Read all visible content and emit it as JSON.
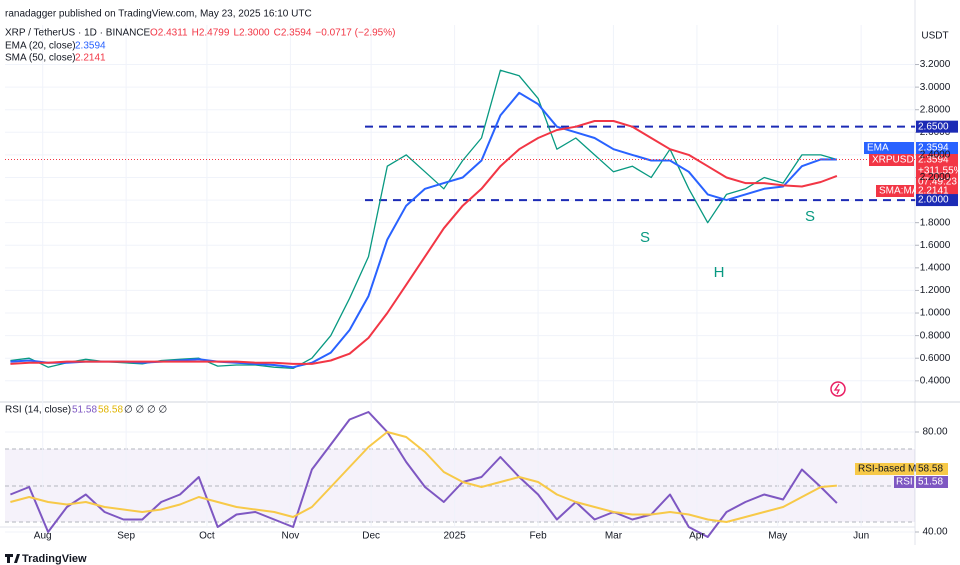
{
  "chart_data": [
    {
      "type": "line",
      "publisher": "ranadagger published on TradingView.com, May 23, 2025 16:10 UTC",
      "title": "XRP / TetherUS · 1D · BINANCE",
      "ohlc": [
        "O2.4311",
        "H2.4799",
        "L2.3000",
        "C2.3594",
        "−0.0717 (−2.95%)"
      ],
      "currency": "USDT",
      "x": [
        0,
        7,
        14,
        21,
        28,
        35,
        42,
        49,
        56,
        63,
        70,
        77,
        84,
        91,
        98,
        105,
        112,
        119,
        126,
        133,
        140,
        147,
        154,
        161,
        168,
        175,
        182,
        189,
        196,
        203,
        210,
        217,
        224,
        231,
        238,
        245,
        252,
        259,
        266,
        273,
        280,
        287,
        294,
        301,
        307
      ],
      "xlim": [
        -2,
        336
      ],
      "xticks": [
        {
          "value": 12,
          "label": "Aug"
        },
        {
          "value": 43,
          "label": "Sep"
        },
        {
          "value": 73,
          "label": "Oct"
        },
        {
          "value": 104,
          "label": "Nov"
        },
        {
          "value": 134,
          "label": "Dec"
        },
        {
          "value": 165,
          "label": "2025"
        },
        {
          "value": 196,
          "label": "Feb"
        },
        {
          "value": 224,
          "label": "Mar"
        },
        {
          "value": 255,
          "label": "Apr"
        },
        {
          "value": 285,
          "label": "May"
        },
        {
          "value": 316,
          "label": "Jun"
        }
      ],
      "ylim": [
        0.23,
        3.55
      ],
      "yticks": [
        {
          "value": 0.4,
          "label": "0.4000"
        },
        {
          "value": 0.6,
          "label": "0.6000"
        },
        {
          "value": 0.8,
          "label": "0.8000"
        },
        {
          "value": 1.0,
          "label": "1.0000"
        },
        {
          "value": 1.2,
          "label": "1.2000"
        },
        {
          "value": 1.4,
          "label": "1.4000"
        },
        {
          "value": 1.6,
          "label": "1.6000"
        },
        {
          "value": 1.8,
          "label": "1.8000"
        },
        {
          "value": 2.0,
          "label": "2.0000"
        },
        {
          "value": 2.2,
          "label": "2.2000"
        },
        {
          "value": 2.4,
          "label": "2.4000"
        },
        {
          "value": 2.6,
          "label": "2.6000"
        },
        {
          "value": 2.8,
          "label": "2.8000"
        },
        {
          "value": 3.0,
          "label": "3.0000"
        },
        {
          "value": 3.2,
          "label": "3.2000"
        }
      ],
      "levels": [
        {
          "value": 2.65,
          "label": "2.6500"
        },
        {
          "value": 2.0,
          "label": "2.0000"
        }
      ],
      "level_color": "#1c2bb5",
      "annotations": [
        "S",
        "H",
        "S"
      ],
      "price_badge": {
        "name": "XRPUSDT",
        "price": "2.3594",
        "change": "+311.55%",
        "countdown": "07:49:23"
      },
      "series": [
        {
          "name": "XRPUSDT",
          "color": "#089981",
          "values": [
            0.58,
            0.6,
            0.52,
            0.56,
            0.59,
            0.57,
            0.56,
            0.55,
            0.58,
            0.59,
            0.6,
            0.53,
            0.54,
            0.54,
            0.52,
            0.51,
            0.6,
            0.8,
            1.13,
            1.5,
            2.3,
            2.4,
            2.25,
            2.1,
            2.35,
            2.55,
            3.15,
            3.1,
            2.9,
            2.45,
            2.55,
            2.4,
            2.25,
            2.3,
            2.2,
            2.45,
            2.1,
            1.8,
            2.05,
            2.1,
            2.2,
            2.15,
            2.4,
            2.4,
            2.3594
          ]
        },
        {
          "name": "EMA (20, close)",
          "badge": "EMA",
          "legend_value": "2.3594",
          "color": "#2962ff",
          "values": [
            0.57,
            0.58,
            0.56,
            0.56,
            0.57,
            0.57,
            0.57,
            0.56,
            0.57,
            0.58,
            0.59,
            0.57,
            0.56,
            0.55,
            0.54,
            0.52,
            0.56,
            0.65,
            0.85,
            1.15,
            1.65,
            1.95,
            2.1,
            2.15,
            2.2,
            2.35,
            2.75,
            2.95,
            2.85,
            2.65,
            2.6,
            2.55,
            2.45,
            2.4,
            2.35,
            2.35,
            2.25,
            2.05,
            2.0,
            2.05,
            2.1,
            2.12,
            2.3,
            2.36,
            2.3594
          ]
        },
        {
          "name": "SMA (50, close)",
          "badge": "SMA:MA",
          "legend_value": "2.2141",
          "color": "#f23645",
          "values": [
            0.55,
            0.56,
            0.56,
            0.57,
            0.57,
            0.57,
            0.57,
            0.57,
            0.57,
            0.57,
            0.57,
            0.57,
            0.57,
            0.56,
            0.56,
            0.55,
            0.55,
            0.58,
            0.64,
            0.78,
            1.0,
            1.25,
            1.5,
            1.75,
            1.95,
            2.1,
            2.3,
            2.45,
            2.55,
            2.62,
            2.65,
            2.7,
            2.7,
            2.65,
            2.55,
            2.45,
            2.4,
            2.3,
            2.2,
            2.15,
            2.15,
            2.13,
            2.12,
            2.16,
            2.2141
          ]
        }
      ]
    },
    {
      "type": "line",
      "title": "RSI (14, close)",
      "extra": "∅ ∅ ∅ ∅",
      "ylim": [
        36.8,
        90.8
      ],
      "yticks": [
        {
          "value": 80,
          "label": "80.00"
        },
        {
          "value": 40,
          "label": "40.00"
        }
      ],
      "series": [
        {
          "name": "RSI",
          "legend_value": "51.58",
          "color": "#7e57c2",
          "values": [
            55,
            58,
            40,
            50,
            55,
            48,
            45,
            45,
            52,
            55,
            62,
            42,
            47,
            48,
            45,
            42,
            65,
            75,
            85,
            88,
            80,
            68,
            58,
            52,
            60,
            62,
            70,
            62,
            55,
            45,
            52,
            45,
            48,
            45,
            47,
            55,
            42,
            38,
            48,
            52,
            55,
            53,
            65,
            58,
            51.58
          ]
        },
        {
          "name": "RSI-based MA",
          "legend_value": "58.58",
          "color": "#f7c948",
          "values": [
            52,
            54,
            52,
            51,
            52,
            50,
            49,
            48,
            49,
            51,
            54,
            52,
            50,
            49,
            48,
            46,
            50,
            58,
            66,
            74,
            80,
            78,
            72,
            64,
            60,
            58,
            60,
            62,
            60,
            55,
            52,
            50,
            48,
            47,
            47,
            48,
            47,
            45,
            44,
            46,
            48,
            50,
            54,
            58,
            58.58
          ]
        }
      ]
    }
  ]
}
